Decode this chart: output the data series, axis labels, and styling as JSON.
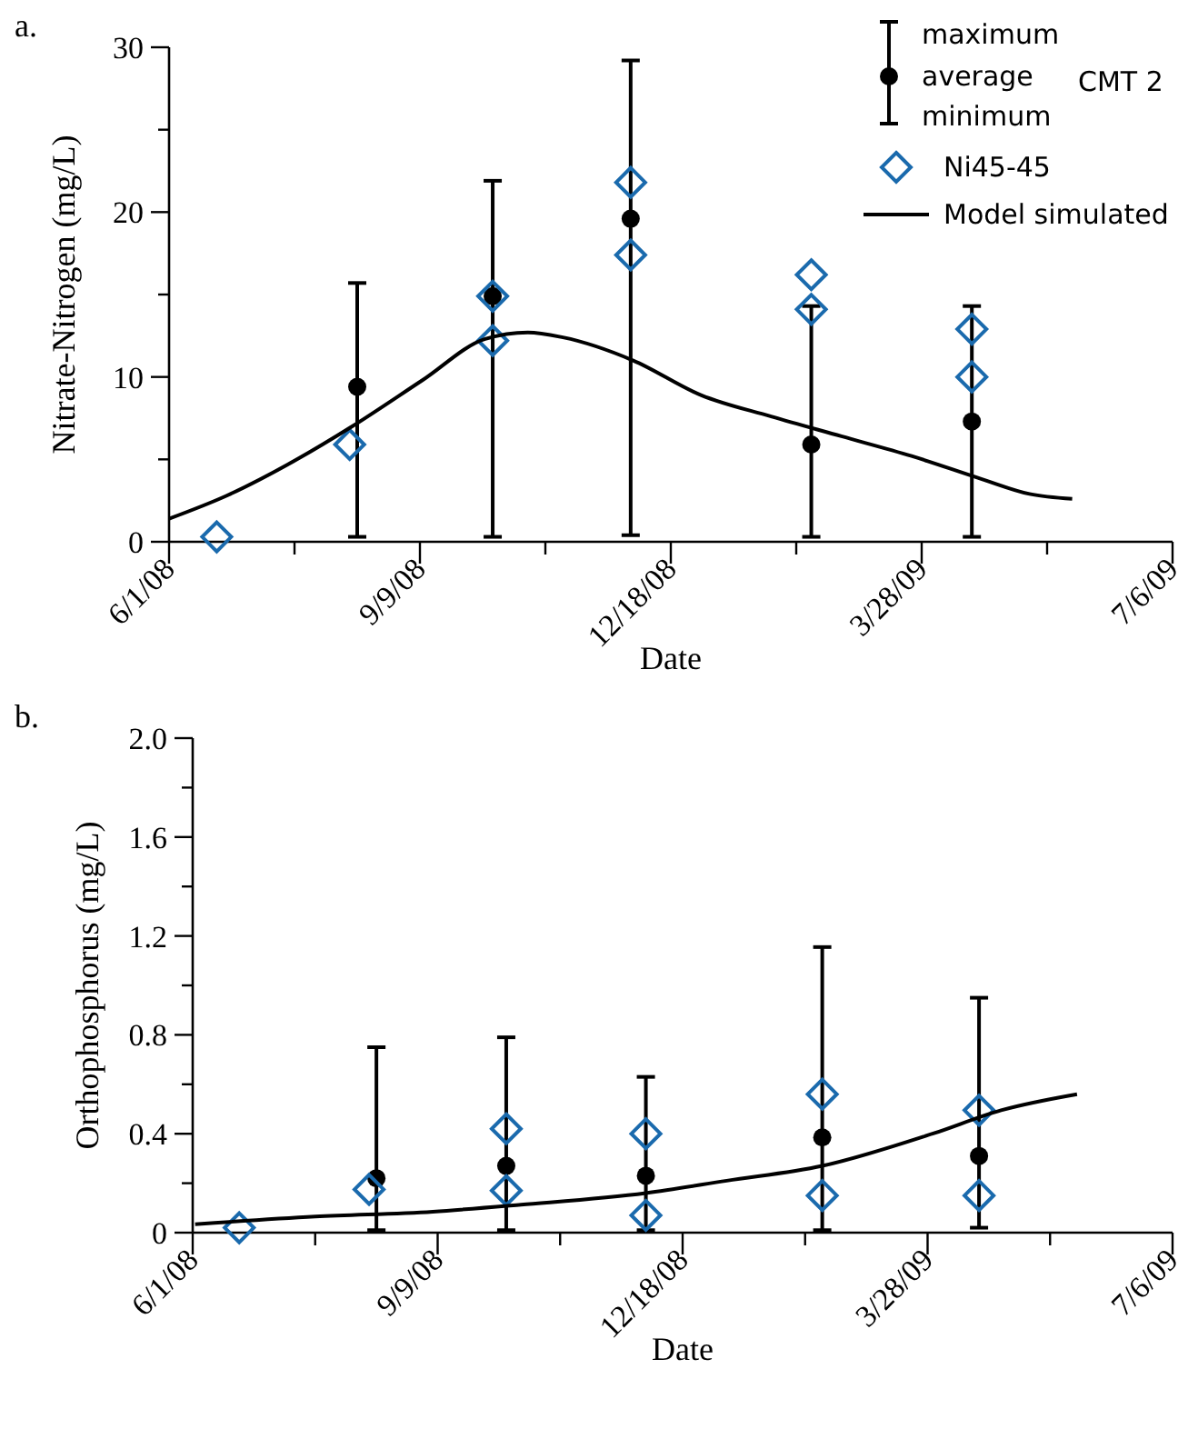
{
  "chart_data": [
    {
      "type": "scatter",
      "title": "a.",
      "xlabel": "Date",
      "ylabel": "Nitrate-Nitrogen (mg/L)",
      "legend": "top right",
      "legend_title": "CMT 2",
      "annotations": [
        "maximum",
        "minimum"
      ],
      "xlim": [
        "2008-06-01",
        "2009-07-06"
      ],
      "xticks": [
        {
          "value": "2008-06-01",
          "label": "6/1/08"
        },
        {
          "value": "2008-07-21",
          "label": null
        },
        {
          "value": "2008-09-09",
          "label": "9/9/08"
        },
        {
          "value": "2008-10-29",
          "label": null
        },
        {
          "value": "2008-12-18",
          "label": "12/18/08"
        },
        {
          "value": "2009-02-06",
          "label": null
        },
        {
          "value": "2009-03-28",
          "label": "3/28/09"
        },
        {
          "value": "2009-05-17",
          "label": null
        },
        {
          "value": "2009-07-06",
          "label": "7/6/09"
        }
      ],
      "ylim": [
        0,
        30
      ],
      "yticks": [
        0,
        {
          "value": 5,
          "label": null
        },
        10,
        {
          "value": 15,
          "label": null
        },
        20,
        {
          "value": 25,
          "label": null
        },
        30
      ],
      "series": [
        {
          "name": "average",
          "marker": "circle",
          "color": "#000000",
          "x": [
            "2008-08-15",
            "2008-10-08",
            "2008-12-02",
            "2009-02-12",
            "2009-04-17"
          ],
          "values": [
            9.4,
            14.9,
            19.6,
            5.9,
            7.3
          ],
          "errors": [
            [
              0.3,
              15.7
            ],
            [
              0.3,
              21.9
            ],
            [
              0.4,
              29.2
            ],
            [
              0.3,
              14.3
            ],
            [
              0.3,
              14.3
            ]
          ]
        },
        {
          "name": "Ni45-45",
          "marker": "diamond",
          "color": "#1a6aad",
          "x": [
            "2008-06-20",
            "2008-08-12",
            "2008-10-08",
            "2008-10-08",
            "2008-12-02",
            "2008-12-02",
            "2009-02-12",
            "2009-02-12",
            "2009-04-17",
            "2009-04-17"
          ],
          "values": [
            0.3,
            5.9,
            14.9,
            12.2,
            21.8,
            17.4,
            16.2,
            14.1,
            12.9,
            10.0
          ]
        },
        {
          "name": "Model simulated",
          "type": "line",
          "marker": "none",
          "line_style": "solid",
          "color": "#000000",
          "x": [
            "2008-06-01",
            "2008-06-24",
            "2008-07-22",
            "2008-08-13",
            "2008-09-10",
            "2008-10-05",
            "2008-10-22",
            "2008-11-05",
            "2008-12-03",
            "2008-12-30",
            "2009-01-27",
            "2009-02-24",
            "2009-03-24",
            "2009-04-21",
            "2009-05-10",
            "2009-05-27"
          ],
          "values": [
            1.4,
            2.8,
            5.0,
            7.0,
            9.8,
            12.3,
            12.7,
            12.4,
            11.0,
            8.9,
            7.6,
            6.4,
            5.2,
            3.8,
            2.9,
            2.6
          ]
        }
      ]
    },
    {
      "type": "scatter",
      "title": "b.",
      "xlabel": "Date",
      "ylabel": "Orthophosphorus (mg/L)",
      "legend": false,
      "xlim": [
        "2008-06-01",
        "2009-07-06"
      ],
      "xticks": [
        {
          "value": "2008-06-01",
          "label": "6/1/08"
        },
        {
          "value": "2008-07-21",
          "label": null
        },
        {
          "value": "2008-09-09",
          "label": "9/9/08"
        },
        {
          "value": "2008-10-29",
          "label": null
        },
        {
          "value": "2008-12-18",
          "label": "12/18/08"
        },
        {
          "value": "2009-02-06",
          "label": null
        },
        {
          "value": "2009-03-28",
          "label": "3/28/09"
        },
        {
          "value": "2009-05-17",
          "label": null
        },
        {
          "value": "2009-07-06",
          "label": "7/6/09"
        }
      ],
      "ylim": [
        0,
        2
      ],
      "yticks": [
        0,
        {
          "value": 0.2,
          "label": null
        },
        0.4,
        {
          "value": 0.6,
          "label": null
        },
        0.8,
        {
          "value": 1.0,
          "label": null
        },
        1.2,
        {
          "value": 1.4,
          "label": null
        },
        1.6,
        {
          "value": 1.8,
          "label": null
        },
        {
          "value": 2,
          "label": "2.0"
        }
      ],
      "series": [
        {
          "marker": "circle",
          "color": "#000000",
          "x": [
            "2008-08-15",
            "2008-10-07",
            "2008-12-03",
            "2009-02-13",
            "2009-04-18"
          ],
          "values": [
            0.22,
            0.27,
            0.23,
            0.385,
            0.31
          ],
          "errors": [
            [
              0.01,
              0.75
            ],
            [
              0.01,
              0.79
            ],
            [
              0.01,
              0.63
            ],
            [
              0.01,
              1.155
            ],
            [
              0.02,
              0.95
            ]
          ]
        },
        {
          "marker": "diamond",
          "color": "#1a6aad",
          "x": [
            "2008-06-20",
            "2008-08-12",
            "2008-10-07",
            "2008-10-07",
            "2008-12-03",
            "2008-12-03",
            "2009-02-13",
            "2009-02-13",
            "2009-04-18",
            "2009-04-18"
          ],
          "values": [
            0.02,
            0.175,
            0.42,
            0.17,
            0.4,
            0.07,
            0.56,
            0.15,
            0.495,
            0.15
          ]
        },
        {
          "type": "line",
          "marker": "none",
          "line_style": "solid",
          "color": "#000000",
          "x": [
            "2008-06-02",
            "2008-07-21",
            "2008-09-07",
            "2008-10-13",
            "2008-12-03",
            "2009-01-05",
            "2009-02-13",
            "2009-03-30",
            "2009-04-27",
            "2009-05-28"
          ],
          "values": [
            0.034,
            0.065,
            0.085,
            0.113,
            0.16,
            0.21,
            0.27,
            0.4,
            0.495,
            0.56
          ]
        }
      ]
    }
  ]
}
